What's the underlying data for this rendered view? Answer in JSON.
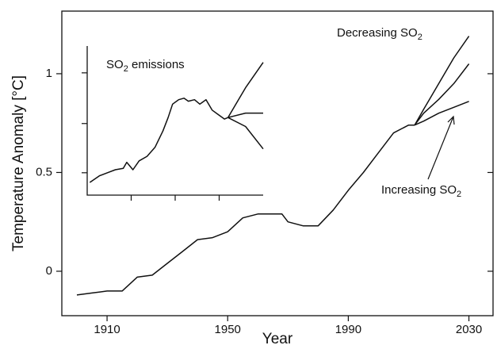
{
  "chart_data": [
    {
      "type": "line",
      "x_label": "Year",
      "y_label": "Temperature Anomaly [°C]",
      "xlim": [
        1895,
        2038
      ],
      "ylim": [
        -0.225,
        1.317
      ],
      "xticks": [
        1910,
        1950,
        1990,
        2030
      ],
      "yticks": [
        0,
        0.5,
        1
      ],
      "color": "#111111",
      "series": [
        {
          "x": [
            1900,
            1905,
            1910,
            1915,
            1920,
            1925,
            1930,
            1935,
            1940,
            1945,
            1950,
            1955,
            1960,
            1965,
            1968,
            1970,
            1975,
            1980,
            1985,
            1990,
            1995,
            2000,
            2005,
            2010,
            2012
          ],
          "values": [
            -0.12,
            -0.11,
            -0.1,
            -0.1,
            -0.03,
            -0.02,
            0.04,
            0.1,
            0.16,
            0.17,
            0.2,
            0.27,
            0.29,
            0.29,
            0.29,
            0.25,
            0.23,
            0.23,
            0.31,
            0.41,
            0.5,
            0.6,
            0.7,
            0.74,
            0.74
          ]
        },
        {
          "x": [
            2012,
            2015,
            2020,
            2025,
            2030
          ],
          "values": [
            0.74,
            0.76,
            0.8,
            0.83,
            0.86
          ]
        },
        {
          "x": [
            2012,
            2015,
            2020,
            2025,
            2030
          ],
          "values": [
            0.74,
            0.8,
            0.87,
            0.95,
            1.05
          ]
        },
        {
          "x": [
            2012,
            2015,
            2020,
            2025,
            2030
          ],
          "values": [
            0.74,
            0.82,
            0.95,
            1.08,
            1.19
          ]
        }
      ],
      "annotations": [
        {
          "text": "Decreasing SO",
          "sub": "2"
        },
        {
          "text": "Increasing SO",
          "sub": "2"
        }
      ]
    },
    {
      "type": "line",
      "title": {
        "text": "SO",
        "sub": "2",
        "after": " emissions"
      },
      "xlim": [
        1850,
        2050
      ],
      "ylim": [
        0,
        1
      ],
      "xticks": [
        1900,
        1950,
        2000
      ],
      "yticks": [
        0.15,
        0.48,
        0.82
      ],
      "color": "#111111",
      "series": [
        {
          "x": [
            1853,
            1864,
            1873,
            1882,
            1891,
            1895,
            1902,
            1909,
            1918,
            1927,
            1936,
            1942,
            1947,
            1954,
            1960,
            1965,
            1972,
            1978,
            1985,
            1992,
            1999,
            2006,
            2010
          ],
          "values": [
            0.085,
            0.13,
            0.15,
            0.17,
            0.18,
            0.22,
            0.17,
            0.23,
            0.26,
            0.32,
            0.43,
            0.52,
            0.61,
            0.64,
            0.65,
            0.63,
            0.64,
            0.61,
            0.64,
            0.57,
            0.54,
            0.51,
            0.52
          ]
        },
        {
          "x": [
            2010,
            2030,
            2050
          ],
          "values": [
            0.52,
            0.72,
            0.89
          ]
        },
        {
          "x": [
            2010,
            2030,
            2050
          ],
          "values": [
            0.52,
            0.55,
            0.55
          ]
        },
        {
          "x": [
            2010,
            2030,
            2050
          ],
          "values": [
            0.52,
            0.46,
            0.31
          ]
        }
      ]
    }
  ]
}
